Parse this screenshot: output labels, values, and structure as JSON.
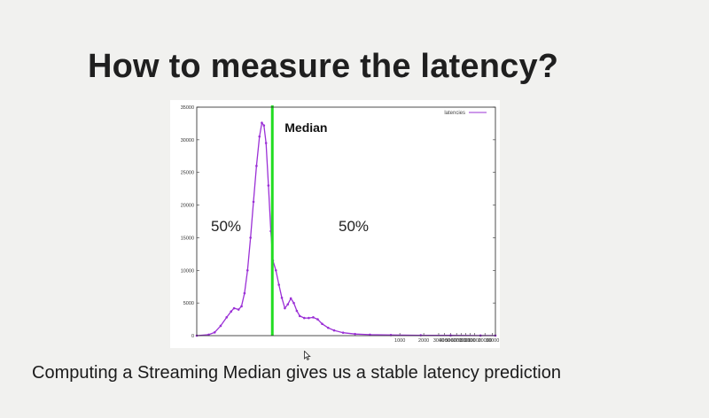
{
  "slide": {
    "title": "How to measure the latency?",
    "caption": "Computing a Streaming Median gives us a stable latency prediction"
  },
  "colors": {
    "background": "#f1f1ef",
    "series": "#9b30d6",
    "median_line": "#22dd22"
  },
  "icons": {
    "cursor": "mouse-pointer-icon"
  },
  "chart_data": {
    "type": "line",
    "legend": {
      "label": "latencies",
      "position": "top-right"
    },
    "ylim": [
      0,
      35000
    ],
    "yticks": [
      0,
      5000,
      10000,
      15000,
      20000,
      25000,
      30000,
      35000
    ],
    "xtick_labels": [
      "1000",
      "2000",
      "3000",
      "4000",
      "5000",
      "6000",
      "7000",
      "8000",
      "9000",
      "10000",
      "20000",
      "30000"
    ],
    "median_x": 0.253,
    "annotations": [
      {
        "text": "Median"
      },
      {
        "text": "50%"
      },
      {
        "text": "50%"
      }
    ],
    "series": [
      {
        "name": "latencies",
        "points": [
          [
            0.0,
            0
          ],
          [
            0.04,
            150
          ],
          [
            0.06,
            500
          ],
          [
            0.08,
            1500
          ],
          [
            0.1,
            2800
          ],
          [
            0.115,
            3700
          ],
          [
            0.125,
            4200
          ],
          [
            0.14,
            4000
          ],
          [
            0.15,
            4500
          ],
          [
            0.16,
            6500
          ],
          [
            0.17,
            10000
          ],
          [
            0.18,
            15000
          ],
          [
            0.19,
            20500
          ],
          [
            0.2,
            26000
          ],
          [
            0.21,
            30500
          ],
          [
            0.218,
            32600
          ],
          [
            0.225,
            32200
          ],
          [
            0.232,
            29500
          ],
          [
            0.24,
            23000
          ],
          [
            0.248,
            16000
          ],
          [
            0.255,
            11500
          ],
          [
            0.265,
            10000
          ],
          [
            0.275,
            7800
          ],
          [
            0.285,
            5800
          ],
          [
            0.295,
            4200
          ],
          [
            0.305,
            4800
          ],
          [
            0.315,
            5700
          ],
          [
            0.325,
            5000
          ],
          [
            0.335,
            3800
          ],
          [
            0.345,
            3000
          ],
          [
            0.36,
            2700
          ],
          [
            0.375,
            2700
          ],
          [
            0.39,
            2800
          ],
          [
            0.405,
            2500
          ],
          [
            0.42,
            1800
          ],
          [
            0.44,
            1200
          ],
          [
            0.46,
            800
          ],
          [
            0.49,
            450
          ],
          [
            0.53,
            250
          ],
          [
            0.58,
            150
          ],
          [
            0.65,
            90
          ],
          [
            0.75,
            60
          ],
          [
            0.85,
            40
          ],
          [
            0.95,
            20
          ],
          [
            1.0,
            15
          ]
        ]
      }
    ]
  }
}
